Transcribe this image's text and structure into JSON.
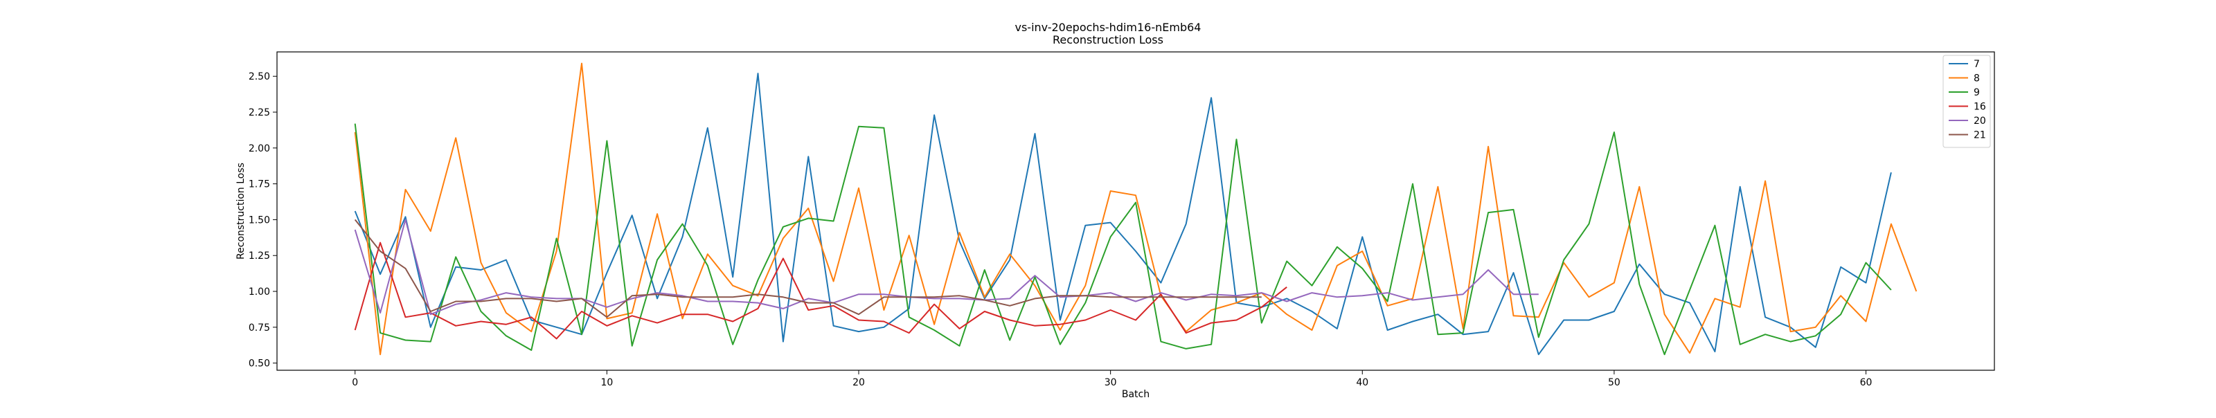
{
  "chart_data": {
    "type": "line",
    "title": "vs-inv-20epochs-hdim16-nEmb64",
    "subtitle": "Reconstruction Loss",
    "xlabel": "Batch",
    "ylabel": "Reconstruction Loss",
    "xlim": [
      -3.1,
      65.1
    ],
    "ylim": [
      0.45,
      2.67
    ],
    "xticks": [
      0,
      10,
      20,
      30,
      40,
      50,
      60
    ],
    "yticks": [
      0.5,
      0.75,
      1.0,
      1.25,
      1.5,
      1.75,
      2.0,
      2.25,
      2.5
    ],
    "ytick_labels": [
      "0.50",
      "0.75",
      "1.00",
      "1.25",
      "1.50",
      "1.75",
      "2.00",
      "2.25",
      "2.50"
    ],
    "grid": false,
    "legend_position": "top-right",
    "series": [
      {
        "name": "7",
        "color": "#1f77b4",
        "values": [
          1.56,
          1.12,
          1.52,
          0.75,
          1.17,
          1.15,
          1.22,
          0.8,
          0.75,
          0.7,
          1.13,
          1.53,
          0.95,
          1.38,
          2.14,
          1.1,
          2.52,
          0.65,
          1.94,
          0.76,
          0.72,
          0.75,
          0.88,
          2.23,
          1.35,
          0.95,
          1.22,
          2.1,
          0.8,
          1.46,
          1.48,
          1.28,
          1.06,
          1.47,
          2.35,
          0.92,
          0.89,
          0.95,
          0.86,
          0.74,
          1.38,
          0.73,
          0.79,
          0.84,
          0.7,
          0.72,
          1.13,
          0.56,
          0.8,
          0.8,
          0.86,
          1.19,
          0.98,
          0.92,
          0.58,
          1.73,
          0.82,
          0.75,
          0.61,
          1.17,
          1.06,
          1.83
        ]
      },
      {
        "name": "8",
        "color": "#ff7f0e",
        "values": [
          2.11,
          0.56,
          1.71,
          1.42,
          2.07,
          1.2,
          0.85,
          0.72,
          1.28,
          2.59,
          0.81,
          0.85,
          1.54,
          0.81,
          1.26,
          1.04,
          0.97,
          1.37,
          1.58,
          1.07,
          1.72,
          0.87,
          1.39,
          0.77,
          1.41,
          0.96,
          1.26,
          1.04,
          0.73,
          1.04,
          1.7,
          1.67,
          0.97,
          0.72,
          0.87,
          0.92,
          0.99,
          0.84,
          0.73,
          1.18,
          1.28,
          0.9,
          0.95,
          1.73,
          0.74,
          2.01,
          0.83,
          0.82,
          1.2,
          0.96,
          1.06,
          1.73,
          0.84,
          0.57,
          0.95,
          0.89,
          1.77,
          0.72,
          0.75,
          0.97,
          0.79,
          1.47,
          1.0
        ]
      },
      {
        "name": "9",
        "color": "#2ca02c",
        "values": [
          2.17,
          0.71,
          0.66,
          0.65,
          1.24,
          0.86,
          0.69,
          0.59,
          1.37,
          0.7,
          2.05,
          0.62,
          1.22,
          1.47,
          1.18,
          0.63,
          1.08,
          1.45,
          1.51,
          1.49,
          2.15,
          2.14,
          0.82,
          0.73,
          0.62,
          1.15,
          0.66,
          1.1,
          0.63,
          0.92,
          1.38,
          1.62,
          0.65,
          0.6,
          0.63,
          2.06,
          0.78,
          1.21,
          1.04,
          1.31,
          1.16,
          0.93,
          1.75,
          0.7,
          0.71,
          1.55,
          1.57,
          0.68,
          1.22,
          1.47,
          2.11,
          1.05,
          0.56,
          1.01,
          1.46,
          0.63,
          0.7,
          0.65,
          0.69,
          0.84,
          1.2,
          1.01
        ]
      },
      {
        "name": "16",
        "color": "#d62728",
        "values": [
          0.73,
          1.34,
          0.82,
          0.85,
          0.76,
          0.79,
          0.77,
          0.82,
          0.67,
          0.86,
          0.76,
          0.83,
          0.78,
          0.84,
          0.84,
          0.79,
          0.88,
          1.23,
          0.87,
          0.9,
          0.8,
          0.79,
          0.71,
          0.91,
          0.74,
          0.86,
          0.8,
          0.76,
          0.77,
          0.8,
          0.87,
          0.8,
          0.98,
          0.71,
          0.78,
          0.8,
          0.89,
          1.03
        ]
      },
      {
        "name": "20",
        "color": "#9467bd",
        "values": [
          1.43,
          0.85,
          1.5,
          0.84,
          0.91,
          0.94,
          0.99,
          0.96,
          0.95,
          0.95,
          0.89,
          0.95,
          0.99,
          0.97,
          0.93,
          0.93,
          0.92,
          0.88,
          0.95,
          0.92,
          0.98,
          0.98,
          0.96,
          0.95,
          0.95,
          0.94,
          0.95,
          1.11,
          0.96,
          0.97,
          0.99,
          0.93,
          0.99,
          0.94,
          0.98,
          0.97,
          0.99,
          0.93,
          0.99,
          0.96,
          0.97,
          0.99,
          0.94,
          0.96,
          0.98,
          1.15,
          0.98,
          0.98
        ]
      },
      {
        "name": "21",
        "color": "#8c564b",
        "values": [
          1.5,
          1.28,
          1.16,
          0.86,
          0.93,
          0.93,
          0.95,
          0.95,
          0.93,
          0.95,
          0.82,
          0.97,
          0.98,
          0.96,
          0.96,
          0.96,
          0.98,
          0.96,
          0.92,
          0.92,
          0.84,
          0.96,
          0.96,
          0.96,
          0.97,
          0.94,
          0.9,
          0.95,
          0.97,
          0.97,
          0.96,
          0.96,
          0.96,
          0.96,
          0.96,
          0.96,
          0.96
        ]
      }
    ]
  }
}
